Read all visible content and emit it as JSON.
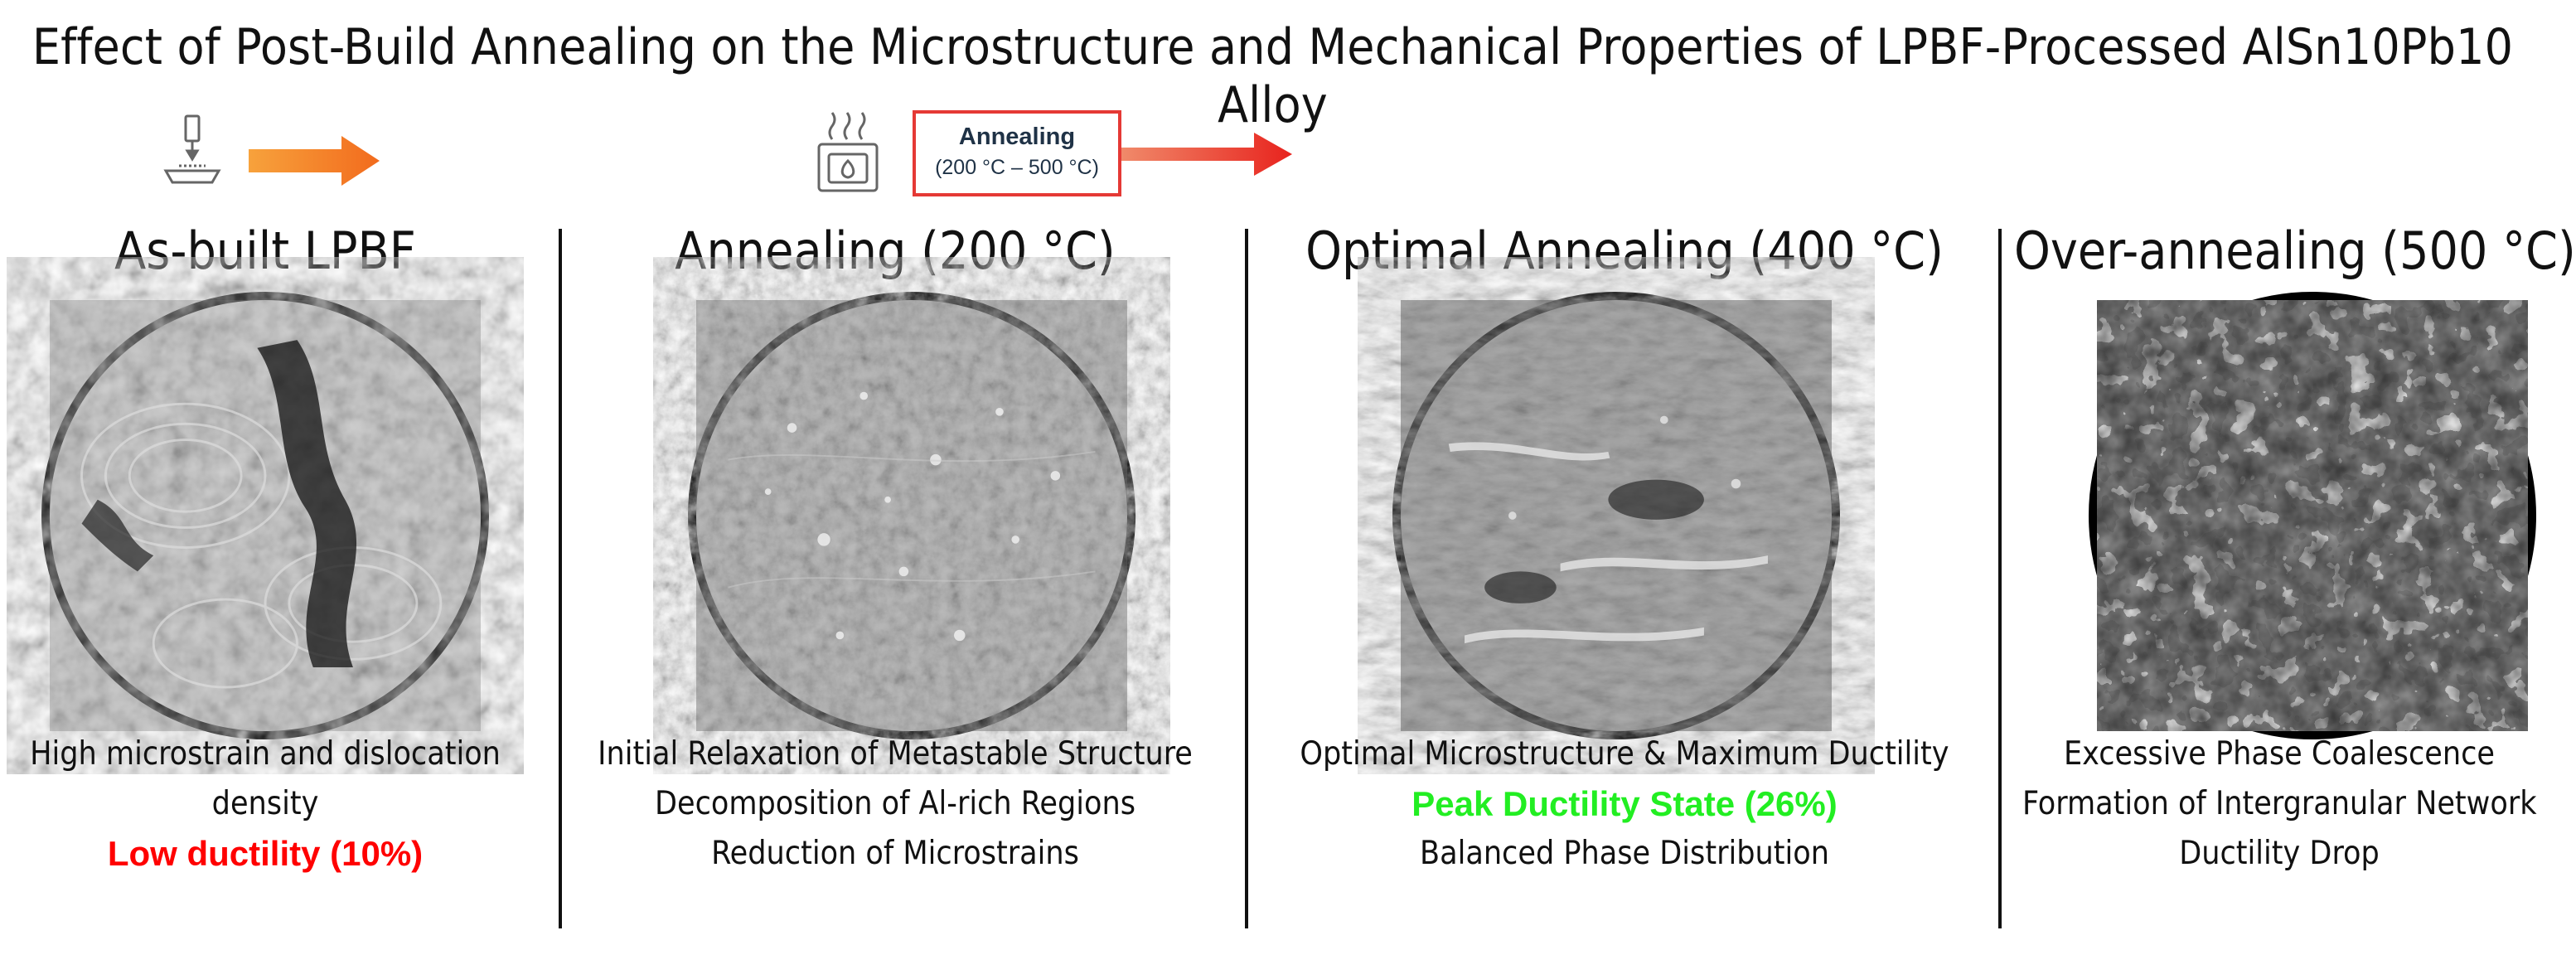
{
  "title": "Effect of Post-Build Annealing on the Microstructure and Mechanical Properties of LPBF-Processed AlSn10Pb10 Alloy",
  "process": {
    "printer_icon": "3d-printer-icon",
    "furnace_icon": "furnace-icon",
    "annealing_label": "Annealing",
    "annealing_range": "(200 °C – 500 °C)",
    "arrow_color_orange": "#f5821f",
    "arrow_color_red": "#e8231e"
  },
  "panels": [
    {
      "title": "As-built LPBF",
      "lines": [
        "High microstrain and dislocation",
        "density"
      ],
      "highlight": "Low ductility (10%)",
      "highlight_color": "#ff0000"
    },
    {
      "title": "Annealing (200 °C)",
      "lines": [
        "Initial Relaxation of Metastable Structure",
        "Decomposition of Al-rich Regions",
        "Reduction of Microstrains"
      ]
    },
    {
      "title": "Optimal Annealing (400 °C)",
      "lines_before": [
        "Optimal Microstructure & Maximum Ductility"
      ],
      "highlight": "Peak Ductility State (26%)",
      "highlight_color": "#22ee22",
      "lines_after": [
        "Balanced Phase Distribution"
      ]
    },
    {
      "title": "Over-annealing (500 °C)",
      "lines": [
        "Excessive Phase Coalescence",
        "Formation of Intergranular Network",
        "Ductility Drop"
      ]
    }
  ]
}
